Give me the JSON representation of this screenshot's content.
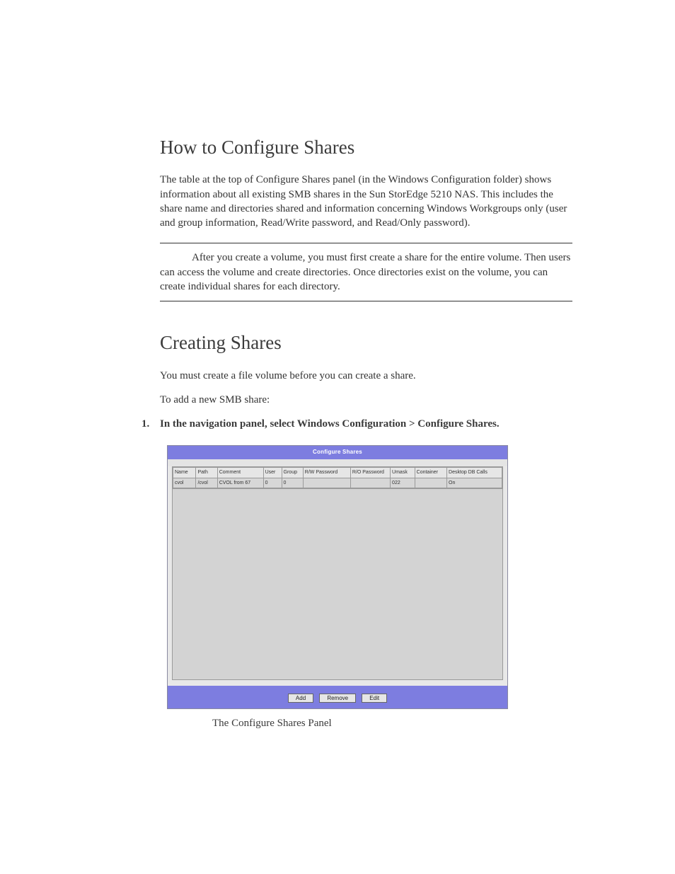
{
  "section1": {
    "heading": "How to Configure Shares",
    "para": "The table at the top of Configure Shares panel (in the Windows Configuration folder) shows information about all existing SMB shares in the Sun StorEdge 5210 NAS. This includes the share name and directories shared and information concerning Windows Workgroups only (user and group information, Read/Write password, and Read/Only password).",
    "note": "After you create a volume, you must first create a share for the entire volume. Then users can access the volume and create directories. Once directories exist on the volume, you can create individual shares for each directory."
  },
  "section2": {
    "heading": "Creating Shares",
    "para1": "You must create a file volume before you can create a share.",
    "para2": "To add a new SMB share:",
    "step1_num": "1.",
    "step1": "In the navigation panel, select Windows Configuration > Configure Shares."
  },
  "panel": {
    "title": "Configure Shares",
    "columns": {
      "c0": "Name",
      "c1": "Path",
      "c2": "Comment",
      "c3": "User",
      "c4": "Group",
      "c5": "R/W Password",
      "c6": "R/O Password",
      "c7": "Umask",
      "c8": "Container",
      "c9": "Desktop DB Calls"
    },
    "colwidths": {
      "c0": "30",
      "c1": "28",
      "c2": "60",
      "c3": "24",
      "c4": "28",
      "c5": "62",
      "c6": "52",
      "c7": "32",
      "c8": "42",
      "c9": "72"
    },
    "row": {
      "c0": "cvol",
      "c1": "/cvol",
      "c2": "CVOL from 67",
      "c3": "0",
      "c4": "0",
      "c5": "",
      "c6": "",
      "c7": "022",
      "c8": "",
      "c9": "On"
    },
    "buttons": {
      "add": "Add",
      "remove": "Remove",
      "edit": "Edit"
    },
    "colors": {
      "header_bg": "#7d7de0",
      "header_text": "#ffffff",
      "panel_bg": "#e4e4e4",
      "table_bg": "#d3d3d3",
      "border": "#9a9a9a"
    }
  },
  "caption": "The Configure Shares Panel"
}
